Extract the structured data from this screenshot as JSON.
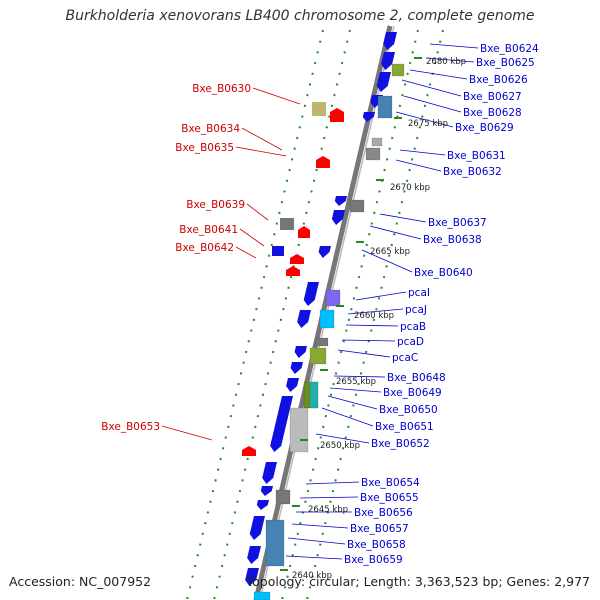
{
  "title": "Burkholderia xenovorans LB400 chromosome 2, complete genome",
  "accession": "Accession: NC_007952",
  "topology": "Topology: circular; Length: 3,363,523 bp; Genes: 2,977",
  "colors": {
    "forward_label": "#0000cc",
    "reverse_label": "#cc0000",
    "backbone": "#777777",
    "tick": "#228b22"
  },
  "kbp_marks": [
    "2680 kbp",
    "2675 kbp",
    "2670 kbp",
    "2665 kbp",
    "2660 kbp",
    "2655 kbp",
    "2650 kbp",
    "2645 kbp",
    "2640 kbp"
  ],
  "right_labels": [
    "Bxe_B0624",
    "Bxe_B0625",
    "Bxe_B0626",
    "Bxe_B0627",
    "Bxe_B0628",
    "Bxe_B0629",
    "Bxe_B0631",
    "Bxe_B0632",
    "Bxe_B0637",
    "Bxe_B0638",
    "Bxe_B0640",
    "pcaI",
    "pcaJ",
    "pcaB",
    "pcaD",
    "pcaC",
    "Bxe_B0648",
    "Bxe_B0649",
    "Bxe_B0650",
    "Bxe_B0651",
    "Bxe_B0652",
    "Bxe_B0654",
    "Bxe_B0655",
    "Bxe_B0656",
    "Bxe_B0657",
    "Bxe_B0658",
    "Bxe_B0659"
  ],
  "left_labels": [
    "Bxe_B0630",
    "Bxe_B0634",
    "Bxe_B0635",
    "Bxe_B0639",
    "Bxe_B0641",
    "Bxe_B0642",
    "Bxe_B0653"
  ]
}
